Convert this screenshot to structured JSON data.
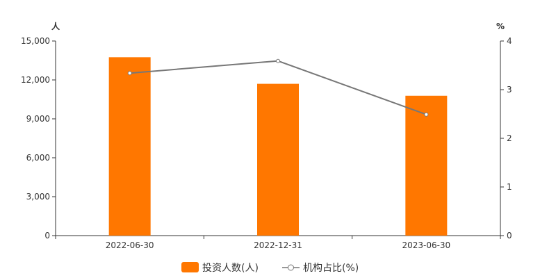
{
  "chart_data": {
    "type": "bar+line",
    "categories": [
      "2022-06-30",
      "2022-12-31",
      "2023-06-30"
    ],
    "series": [
      {
        "name": "投资人数(人)",
        "type": "bar",
        "axis": "left",
        "color": "#ff7700",
        "values": [
          13750,
          11700,
          10780
        ]
      },
      {
        "name": "机构占比(%)",
        "type": "line",
        "axis": "right",
        "color": "#777777",
        "values": [
          3.34,
          3.59,
          2.49
        ]
      }
    ],
    "y_left": {
      "unit": "人",
      "ylim": [
        0,
        15000
      ],
      "ticks": [
        0,
        3000,
        6000,
        9000,
        12000,
        15000
      ],
      "tick_labels": [
        "0",
        "3,000",
        "6,000",
        "9,000",
        "12,000",
        "15,000"
      ]
    },
    "y_right": {
      "unit": "%",
      "ylim": [
        0,
        4
      ],
      "ticks": [
        0,
        1,
        2,
        3,
        4
      ],
      "tick_labels": [
        "0",
        "1",
        "2",
        "3",
        "4"
      ]
    },
    "grid": false,
    "legend_position": "bottom-center"
  }
}
